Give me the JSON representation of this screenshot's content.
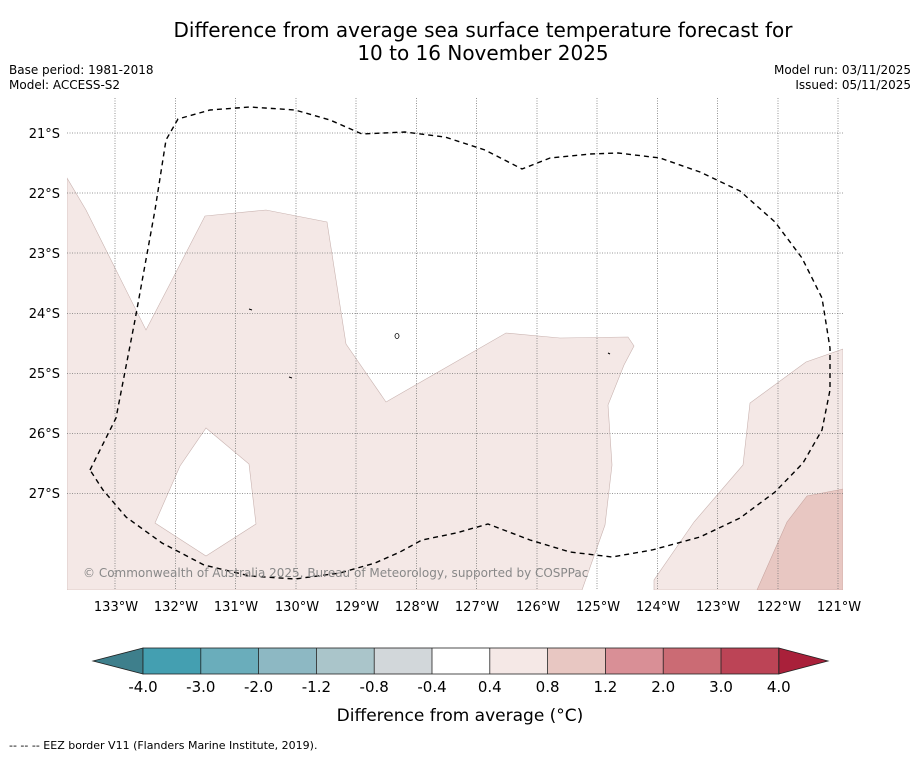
{
  "title": {
    "line1": "Difference from average sea surface temperature forecast for",
    "line2": "10 to 16 November 2025"
  },
  "info_left": {
    "base_period": "Base period: 1981-2018",
    "model": "Model: ACCESS-S2"
  },
  "info_right": {
    "model_run": "Model run: 03/11/2025",
    "issued": "Issued: 05/11/2025"
  },
  "map": {
    "lon_labels": [
      "133°W",
      "132°W",
      "131°W",
      "130°W",
      "129°W",
      "128°W",
      "127°W",
      "126°W",
      "125°W",
      "124°W",
      "123°W",
      "122°W",
      "121°W"
    ],
    "lat_labels": [
      "21°S",
      "22°S",
      "23°S",
      "24°S",
      "25°S",
      "26°S",
      "27°S"
    ],
    "copyright": "© Commonwealth of Australia 2025, Bureau of Meteorology, supported by COSPPac",
    "extent": {
      "lon_min": -133.8,
      "lon_max": -120.9,
      "lat_min": -28.6,
      "lat_max": -20.4
    }
  },
  "colorbar": {
    "tick_labels": [
      "-4.0",
      "-3.0",
      "-2.0",
      "-1.2",
      "-0.8",
      "-0.4",
      "0.4",
      "0.8",
      "1.2",
      "2.0",
      "3.0",
      "4.0"
    ],
    "bin_colors": [
      "#449fb1",
      "#6aadbb",
      "#8db8c3",
      "#aac5ca",
      "#d2d7da",
      "#ffffff",
      "#f5e8e6",
      "#e8c7c2",
      "#d98f96",
      "#cb6b74",
      "#bc4456"
    ],
    "extend_low_color": "#3e7f8c",
    "extend_high_color": "#a9203a",
    "label": "Difference from average (°C)"
  },
  "legend_footer": "-- -- -- EEZ border V11 (Flanders Marine Institute, 2019).",
  "contour_colors": {
    "band_0_4_to_0_8": "#f4e8e6",
    "band_0_8_to_1_2": "#e8c7c2"
  }
}
